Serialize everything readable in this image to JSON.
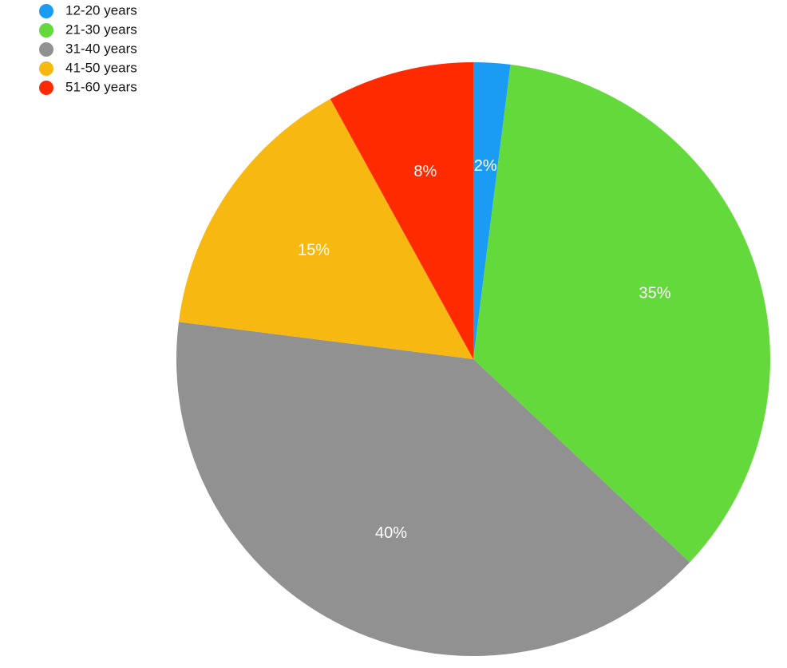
{
  "chart_data": {
    "type": "pie",
    "categories": [
      "12-20  years",
      "21-30 years",
      "31-40 years",
      "41-50 years",
      "51-60 years"
    ],
    "values": [
      2,
      35,
      40,
      15,
      8
    ],
    "value_labels": [
      "2%",
      "35%",
      "40%",
      "15%",
      "8%"
    ],
    "colors": [
      "#1a9cf5",
      "#63d93b",
      "#919191",
      "#f7b911",
      "#ff2a00"
    ],
    "legend": "top-left"
  }
}
